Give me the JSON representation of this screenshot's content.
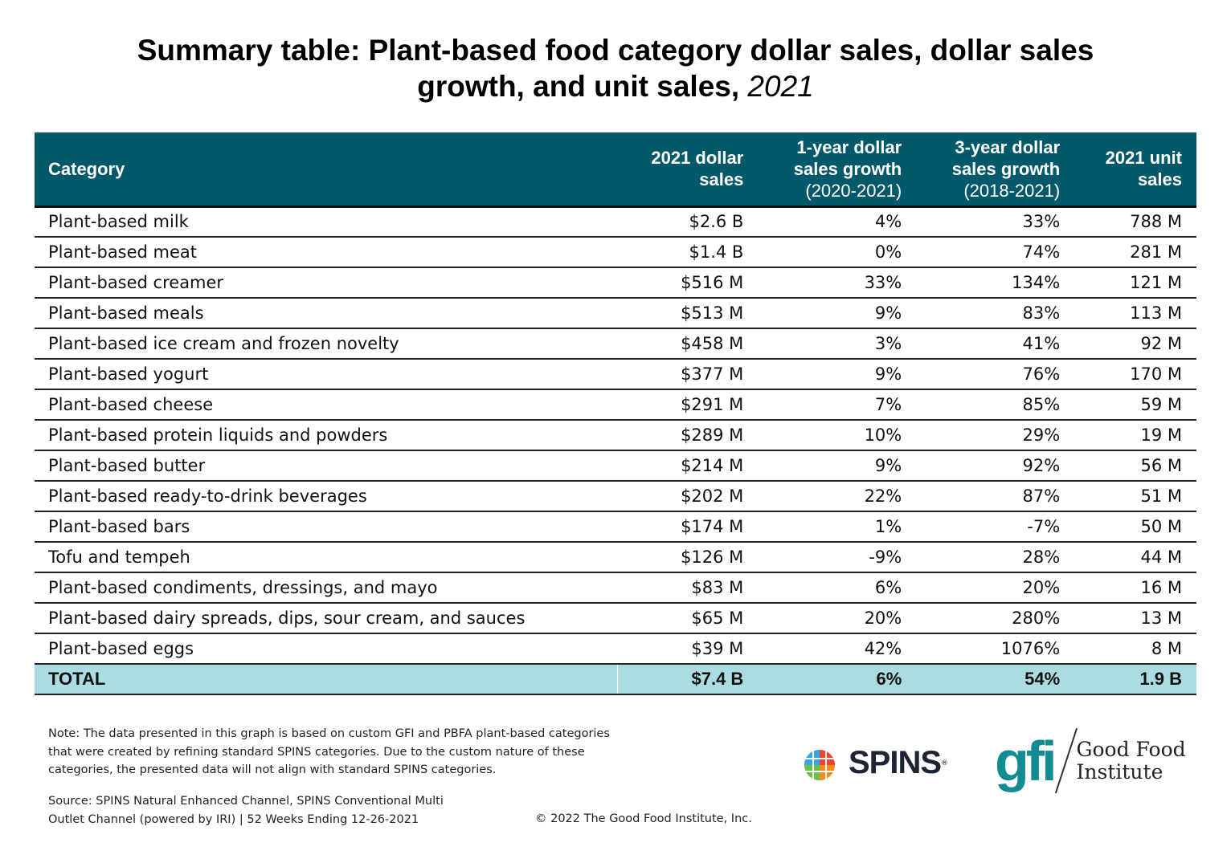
{
  "title": {
    "main": "Summary table: Plant-based food category dollar sales, dollar sales growth, and unit sales,",
    "line2": "growth, and unit sales,",
    "year": "2021"
  },
  "table": {
    "headers": [
      {
        "line1": "Category",
        "line2": "",
        "line3": ""
      },
      {
        "line1": "2021 dollar",
        "line2": "sales",
        "line3": ""
      },
      {
        "line1": "1-year dollar",
        "line2": "sales growth",
        "line3": "(2020-2021)"
      },
      {
        "line1": "3-year dollar",
        "line2": "sales growth",
        "line3": "(2018-2021)"
      },
      {
        "line1": "2021 unit",
        "line2": "sales",
        "line3": ""
      }
    ],
    "rows": [
      [
        "Plant-based milk",
        "$2.6 B",
        "4%",
        "33%",
        "788 M"
      ],
      [
        "Plant-based meat",
        "$1.4 B",
        "0%",
        "74%",
        "281 M"
      ],
      [
        "Plant-based creamer",
        "$516 M",
        "33%",
        "134%",
        "121 M"
      ],
      [
        "Plant-based meals",
        "$513 M",
        "9%",
        "83%",
        "113 M"
      ],
      [
        "Plant-based ice cream and frozen novelty",
        "$458 M",
        "3%",
        "41%",
        "92 M"
      ],
      [
        "Plant-based yogurt",
        "$377 M",
        "9%",
        "76%",
        "170 M"
      ],
      [
        "Plant-based cheese",
        "$291 M",
        "7%",
        "85%",
        "59 M"
      ],
      [
        "Plant-based protein liquids and powders",
        "$289 M",
        "10%",
        "29%",
        "19 M"
      ],
      [
        "Plant-based butter",
        "$214 M",
        "9%",
        "92%",
        "56 M"
      ],
      [
        "Plant-based ready-to-drink beverages",
        "$202 M",
        "22%",
        "87%",
        "51 M"
      ],
      [
        "Plant-based bars",
        "$174 M",
        "1%",
        "-7%",
        "50 M"
      ],
      [
        "Tofu and tempeh",
        "$126 M",
        "-9%",
        "28%",
        "44 M"
      ],
      [
        "Plant-based condiments, dressings, and mayo",
        "$83 M",
        "6%",
        "20%",
        "16 M"
      ],
      [
        "Plant-based dairy spreads, dips, sour cream, and sauces",
        "$65 M",
        "20%",
        "280%",
        "13 M"
      ],
      [
        "Plant-based eggs",
        "$39 M",
        "42%",
        "1076%",
        "8 M"
      ]
    ],
    "total": [
      "TOTAL",
      "$7.4 B",
      "6%",
      "54%",
      "1.9 B"
    ]
  },
  "footer": {
    "note": [
      "Note: The data presented in this graph is based on custom GFI and PBFA plant-based categories",
      "that were created by refining standard SPINS categories. Due to the custom nature of these",
      "categories, the presented data will not align with standard SPINS categories."
    ],
    "source": [
      "Source: SPINS Natural Enhanced Channel, SPINS Conventional Multi",
      "Outlet Channel (powered by IRI) | 52 Weeks Ending 12-26-2021"
    ],
    "copyright": "© 2022 The Good Food Institute, Inc.",
    "logos": {
      "spins": "SPINS",
      "gfi_mark": "gfi",
      "gfi_name_1": "Good Food",
      "gfi_name_2": "Institute"
    }
  },
  "colors": {
    "header_bg": "#03596a",
    "total_bg": "#abdce1",
    "gfi_teal": "#138b92"
  }
}
